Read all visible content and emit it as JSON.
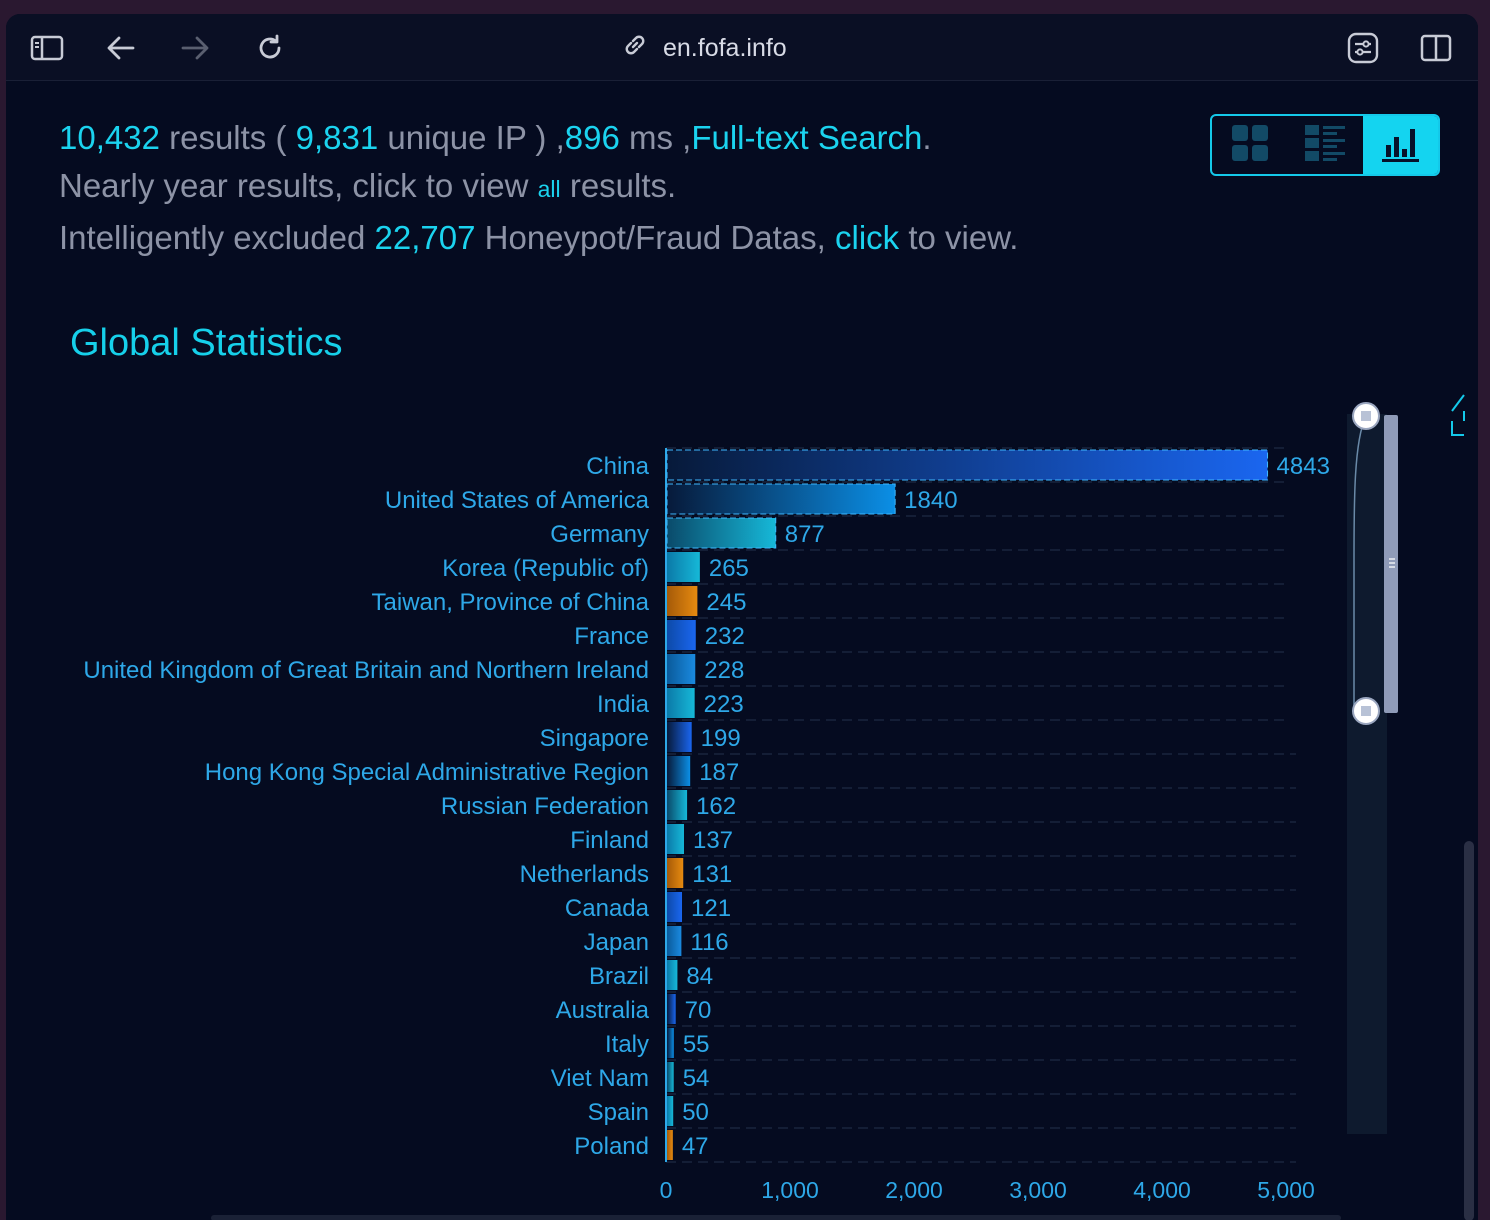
{
  "browser": {
    "url": "en.fofa.info"
  },
  "summary": {
    "results_count": "10,432",
    "results_word": " results ( ",
    "unique_ip": "9,831",
    "unique_word": " unique IP ) ,",
    "ms_value": "896",
    "ms_word": " ms ,",
    "search_type": "Full-text Search",
    "period": ".",
    "line2_a": "Nearly year results, click to view ",
    "line2_link": "all",
    "line2_b": " results.",
    "line3_a": "Intelligently excluded ",
    "line3_count": "22,707",
    "line3_b": " Honeypot/Fraud Datas, ",
    "line3_link": "click",
    "line3_c": " to view."
  },
  "view_switch": {
    "icons": [
      "grid-view-icon",
      "list-view-icon",
      "bar-chart-view-icon"
    ],
    "active": "bar-chart-view-icon"
  },
  "section_title": "Global Statistics",
  "chart_data": {
    "type": "bar",
    "orientation": "horizontal",
    "categories": [
      "China",
      "United States of America",
      "Germany",
      "Korea (Republic of)",
      "Taiwan, Province of China",
      "France",
      "United Kingdom of Great Britain and Northern Ireland",
      "India",
      "Singapore",
      "Hong Kong Special Administrative Region",
      "Russian Federation",
      "Finland",
      "Netherlands",
      "Canada",
      "Japan",
      "Brazil",
      "Australia",
      "Italy",
      "Viet Nam",
      "Spain",
      "Poland"
    ],
    "values": [
      4843,
      1840,
      877,
      265,
      245,
      232,
      228,
      223,
      199,
      187,
      162,
      137,
      131,
      121,
      116,
      84,
      70,
      55,
      54,
      50,
      47
    ],
    "xlim": [
      0,
      5000
    ],
    "x_ticks": [
      "0",
      "1,000",
      "2,000",
      "3,000",
      "4,000",
      "5,000"
    ],
    "grid": true,
    "data_labels": true
  },
  "colors": {
    "accent": "#14d4f0",
    "label": "#2ea8e8",
    "bar_blue": "#1a66f0",
    "bar_cyan": "#16b8d8",
    "bar_orange": "#e68a10"
  }
}
